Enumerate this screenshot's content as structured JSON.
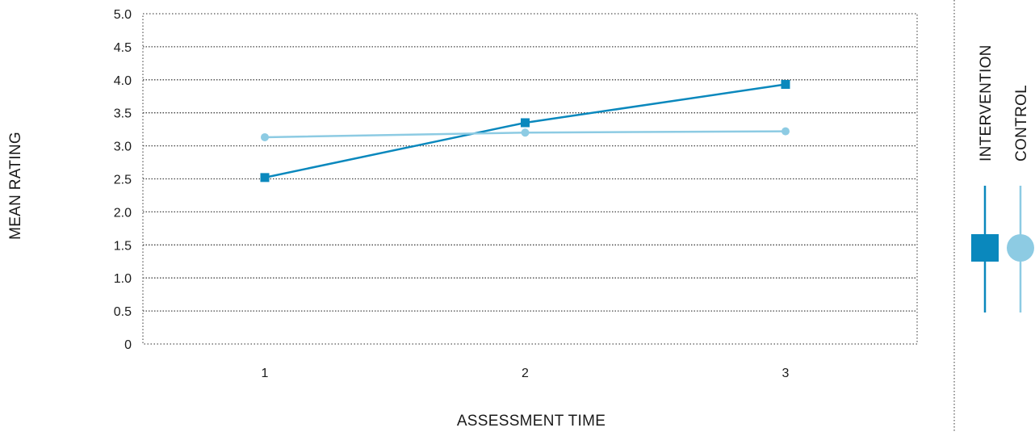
{
  "chart_data": {
    "type": "line",
    "x": [
      1,
      2,
      3
    ],
    "x_tick_labels": [
      "1",
      "2",
      "3"
    ],
    "y_tick_labels": [
      "0",
      "0.5",
      "1.0",
      "1.5",
      "2.0",
      "2.5",
      "3.0",
      "3.5",
      "4.0",
      "4.5",
      "5.0"
    ],
    "xlabel": "ASSESSMENT TIME",
    "ylabel": "MEAN RATING",
    "ylim": [
      0,
      5
    ],
    "grid": "horizontal dotted",
    "legend_position": "right, vertical",
    "series": [
      {
        "name": "INTERVENTION",
        "values": [
          2.52,
          3.35,
          3.93
        ],
        "color": "#0a88bd",
        "marker": "square"
      },
      {
        "name": "CONTROL",
        "values": [
          3.13,
          3.2,
          3.22
        ],
        "color": "#8dcbe3",
        "marker": "circle"
      }
    ]
  }
}
